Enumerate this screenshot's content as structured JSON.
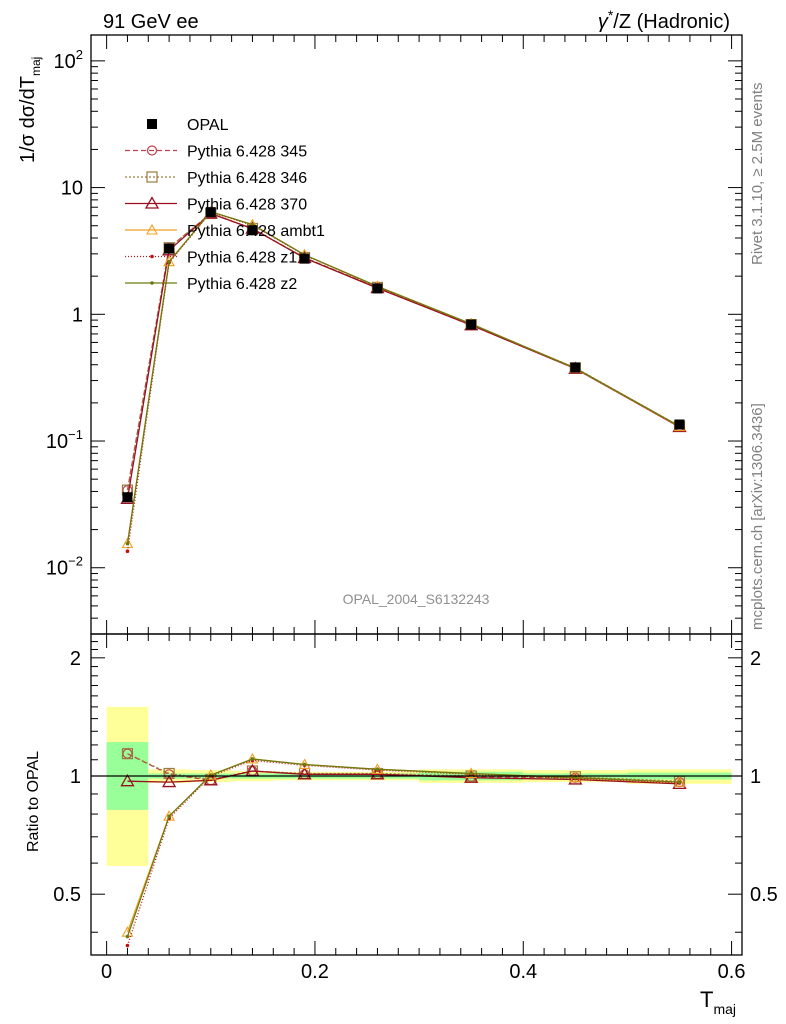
{
  "header": {
    "left": "91 GeV ee",
    "right_gamma": "γ",
    "right_star": "*",
    "right_rest": "/Z (Hadronic)"
  },
  "side_text": {
    "rivet": "Rivet 3.1.10, ≥ 2.5M events",
    "mcplots": "mcplots.cern.ch [arXiv:1306.3436]"
  },
  "watermark": "OPAL_2004_S6132243",
  "y_label_main": {
    "prefix": "1/σ dσ/dT",
    "sub": "maj"
  },
  "y_label_ratio": "Ratio to OPAL",
  "x_label": {
    "base": "T",
    "sub": "maj"
  },
  "main_ticks": [
    {
      "base": "10",
      "exp": "2"
    },
    {
      "base": "10",
      "exp": ""
    },
    {
      "base": "1",
      "exp": ""
    },
    {
      "base": "10",
      "exp": "−1"
    },
    {
      "base": "10",
      "exp": "−2"
    }
  ],
  "ratio_ticks": [
    "2",
    "1",
    "0.5"
  ],
  "x_ticks": [
    "0",
    "0.2",
    "0.4",
    "0.6"
  ],
  "chart_data": {
    "type": "line",
    "x": [
      0.02,
      0.06,
      0.1,
      0.14,
      0.19,
      0.26,
      0.35,
      0.45,
      0.55
    ],
    "xlim": [
      -0.015,
      0.61
    ],
    "main": {
      "yscale": "log",
      "ylim": [
        0.003,
        160
      ],
      "data": {
        "name": "OPAL",
        "values": [
          0.036,
          3.3,
          6.4,
          4.6,
          2.75,
          1.6,
          0.83,
          0.38,
          0.135
        ]
      }
    },
    "ratio": {
      "ylim": [
        0.35,
        2.3
      ],
      "yscale": "log",
      "reference": 1.0,
      "bands": [
        {
          "x0": 0.0,
          "x1": 0.04,
          "y_lo": 0.59,
          "y_hi": 1.5,
          "color": "#ffff99"
        },
        {
          "x0": 0.0,
          "x1": 0.04,
          "y_lo": 0.82,
          "y_hi": 1.22,
          "color": "#99ff99"
        },
        {
          "x0": 0.04,
          "x1": 0.08,
          "y_lo": 0.96,
          "y_hi": 1.04,
          "color": "#ffff99"
        },
        {
          "x0": 0.04,
          "x1": 0.08,
          "y_lo": 0.985,
          "y_hi": 1.015,
          "color": "#99ff99"
        },
        {
          "x0": 0.08,
          "x1": 0.12,
          "y_lo": 0.965,
          "y_hi": 1.035,
          "color": "#ffff99"
        },
        {
          "x0": 0.08,
          "x1": 0.12,
          "y_lo": 0.985,
          "y_hi": 1.015,
          "color": "#99ff99"
        },
        {
          "x0": 0.12,
          "x1": 0.16,
          "y_lo": 0.97,
          "y_hi": 1.03,
          "color": "#ffff99"
        },
        {
          "x0": 0.12,
          "x1": 0.16,
          "y_lo": 0.985,
          "y_hi": 1.015,
          "color": "#99ff99"
        },
        {
          "x0": 0.16,
          "x1": 0.22,
          "y_lo": 0.975,
          "y_hi": 1.025,
          "color": "#ffff99"
        },
        {
          "x0": 0.16,
          "x1": 0.22,
          "y_lo": 0.985,
          "y_hi": 1.015,
          "color": "#99ff99"
        },
        {
          "x0": 0.22,
          "x1": 0.3,
          "y_lo": 0.975,
          "y_hi": 1.025,
          "color": "#ffff99"
        },
        {
          "x0": 0.22,
          "x1": 0.3,
          "y_lo": 0.985,
          "y_hi": 1.015,
          "color": "#99ff99"
        },
        {
          "x0": 0.3,
          "x1": 0.4,
          "y_lo": 0.96,
          "y_hi": 1.04,
          "color": "#ffff99"
        },
        {
          "x0": 0.3,
          "x1": 0.4,
          "y_lo": 0.975,
          "y_hi": 1.025,
          "color": "#99ff99"
        },
        {
          "x0": 0.4,
          "x1": 0.5,
          "y_lo": 0.965,
          "y_hi": 1.035,
          "color": "#ffff99"
        },
        {
          "x0": 0.4,
          "x1": 0.5,
          "y_lo": 0.985,
          "y_hi": 1.015,
          "color": "#99ff99"
        },
        {
          "x0": 0.5,
          "x1": 0.6,
          "y_lo": 0.955,
          "y_hi": 1.04,
          "color": "#ffff99"
        },
        {
          "x0": 0.5,
          "x1": 0.6,
          "y_lo": 0.98,
          "y_hi": 1.02,
          "color": "#99ff99"
        }
      ]
    },
    "series": [
      {
        "name": "Pythia 6.428 345",
        "color": "#c0404a",
        "dash": "5,3",
        "marker": "circle",
        "values": [
          0.041,
          3.35,
          6.25,
          4.75,
          2.8,
          1.62,
          0.82,
          0.375,
          0.13
        ],
        "ratio": [
          1.14,
          1.01,
          0.975,
          1.03,
          1.01,
          1.01,
          0.995,
          0.99,
          0.965
        ]
      },
      {
        "name": "Pythia 6.428 346",
        "color": "#9a7a40",
        "dash": "2,2",
        "marker": "square",
        "values": [
          0.041,
          3.35,
          6.25,
          4.75,
          2.8,
          1.63,
          0.83,
          0.378,
          0.131
        ],
        "ratio": [
          1.14,
          1.015,
          0.98,
          1.03,
          1.015,
          1.015,
          1.0,
          0.995,
          0.97
        ]
      },
      {
        "name": "Pythia 6.428 370",
        "color": "#9a1020",
        "dash": "",
        "marker": "triangle",
        "values": [
          0.035,
          3.2,
          6.25,
          4.75,
          2.78,
          1.61,
          0.82,
          0.372,
          0.129
        ],
        "ratio": [
          0.97,
          0.965,
          0.975,
          1.03,
          1.01,
          1.01,
          0.99,
          0.98,
          0.955
        ]
      },
      {
        "name": "Pythia 6.428 ambt1",
        "color": "#f0a020",
        "dash": "",
        "marker": "triangle-open",
        "values": [
          0.0155,
          2.6,
          6.45,
          5.1,
          2.95,
          1.66,
          0.84,
          0.375,
          0.13
        ],
        "ratio": [
          0.4,
          0.79,
          1.005,
          1.105,
          1.07,
          1.04,
          1.015,
          0.99,
          0.965
        ]
      },
      {
        "name": "Pythia 6.428 z1",
        "color": "#c01010",
        "dash": "1,2",
        "marker": "dot",
        "values": [
          0.0135,
          2.55,
          6.4,
          5.05,
          2.93,
          1.65,
          0.835,
          0.374,
          0.13
        ],
        "ratio": [
          0.37,
          0.78,
          1.0,
          1.095,
          1.065,
          1.035,
          1.01,
          0.985,
          0.96
        ]
      },
      {
        "name": "Pythia 6.428 z2",
        "color": "#6e7a10",
        "dash": "",
        "marker": "dot",
        "values": [
          0.0155,
          2.6,
          6.45,
          5.1,
          2.95,
          1.66,
          0.84,
          0.376,
          0.131
        ],
        "ratio": [
          0.39,
          0.79,
          1.005,
          1.105,
          1.07,
          1.04,
          1.015,
          0.99,
          0.965
        ]
      }
    ],
    "legend": {
      "position": "top-left",
      "entries": [
        "OPAL",
        "Pythia 6.428 345",
        "Pythia 6.428 346",
        "Pythia 6.428 370",
        "Pythia 6.428 ambt1",
        "Pythia 6.428 z1",
        "Pythia 6.428 z2"
      ]
    }
  }
}
